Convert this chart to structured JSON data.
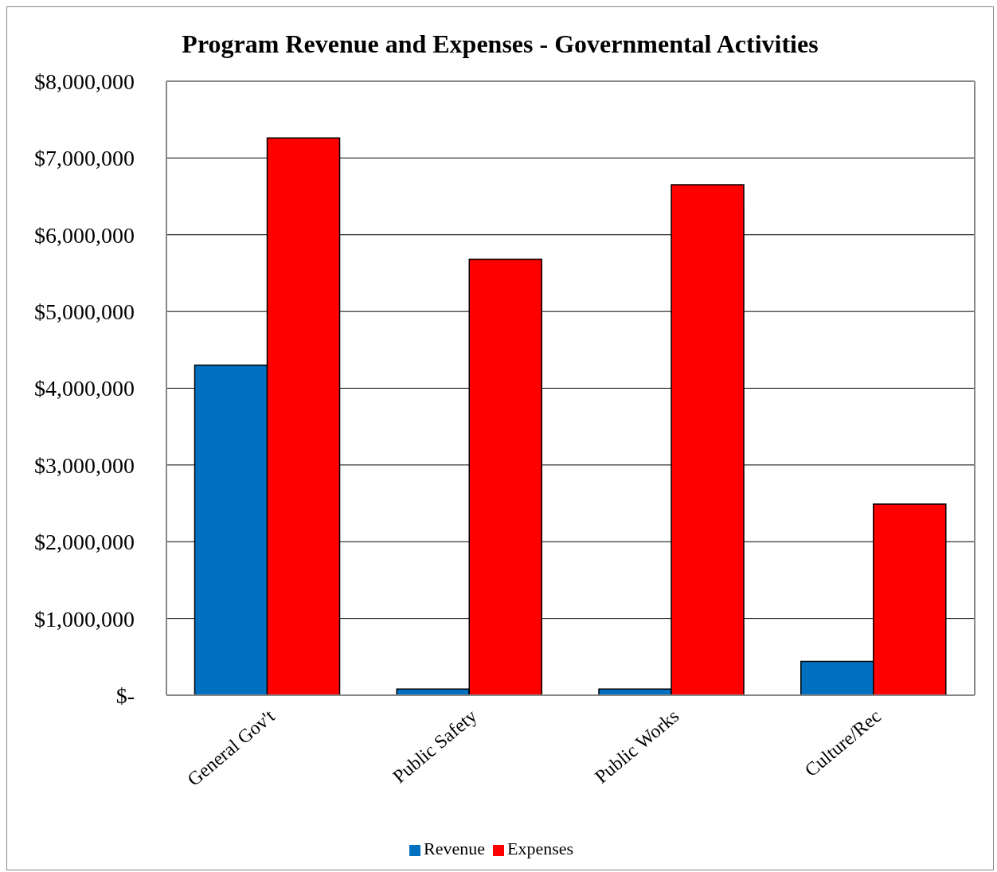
{
  "chart_data": {
    "type": "bar",
    "title": "Program Revenue and Expenses - Governmental Activities",
    "categories": [
      "General Gov't",
      "Public Safety",
      "Public Works",
      "Culture/Rec"
    ],
    "series": [
      {
        "name": "Revenue",
        "color": "#0070c0",
        "values": [
          4300000,
          80000,
          80000,
          440000
        ]
      },
      {
        "name": "Expenses",
        "color": "#ff0000",
        "values": [
          7260000,
          5680000,
          6650000,
          2490000
        ]
      }
    ],
    "ylim": [
      0,
      8000000
    ],
    "yticks": [
      {
        "value": 0,
        "label": "$-"
      },
      {
        "value": 1000000,
        "label": "$1,000,000"
      },
      {
        "value": 2000000,
        "label": "$2,000,000"
      },
      {
        "value": 3000000,
        "label": "$3,000,000"
      },
      {
        "value": 4000000,
        "label": "$4,000,000"
      },
      {
        "value": 5000000,
        "label": "$5,000,000"
      },
      {
        "value": 6000000,
        "label": "$6,000,000"
      },
      {
        "value": 7000000,
        "label": "$7,000,000"
      },
      {
        "value": 8000000,
        "label": "$8,000,000"
      }
    ],
    "grid": "y",
    "legend": "bottom"
  }
}
